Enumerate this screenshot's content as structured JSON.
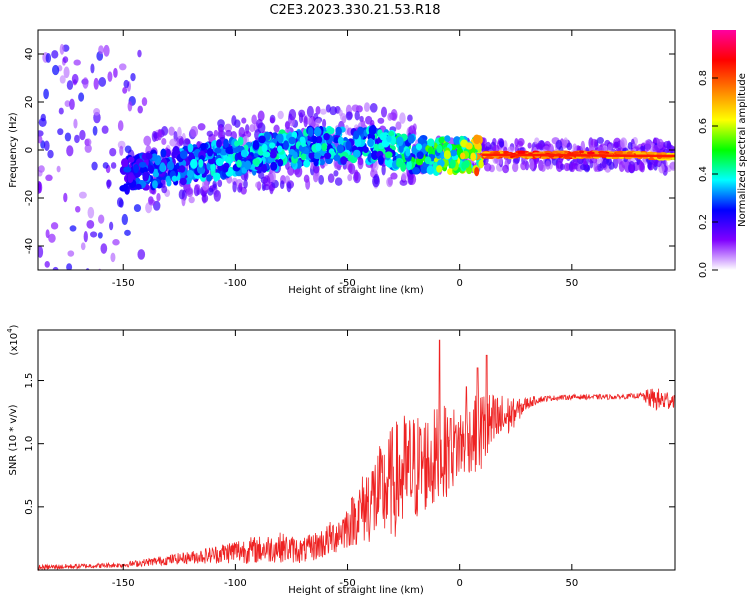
{
  "title": "C2E3.2023.330.21.53.R18",
  "chart_data": [
    {
      "type": "heatmap",
      "title": "C2E3.2023.330.21.53.R18",
      "xlabel": "Height of straight line (km)",
      "ylabel": "Frequency (Hz)",
      "xlim": [
        -188,
        96
      ],
      "ylim": [
        -50,
        50
      ],
      "x_ticks": [
        -150,
        -100,
        -50,
        0,
        50
      ],
      "y_ticks": [
        -40,
        -20,
        0,
        20,
        40
      ],
      "colorbar": {
        "label": "Normalized spectral amplitude",
        "range": [
          0.0,
          1.0
        ],
        "ticks": [
          "0.0",
          "0.2",
          "0.4",
          "0.6",
          "0.8"
        ],
        "tick_values": [
          0.0,
          0.2,
          0.4,
          0.6,
          0.8
        ],
        "colors": [
          "#ffffff",
          "#8000ff",
          "#0000ff",
          "#00ffff",
          "#00ff00",
          "#ffff00",
          "#ff8000",
          "#ff0000",
          "#ff00a0"
        ]
      },
      "ridge": [
        {
          "x": -185,
          "f": -12,
          "a": 0.18
        },
        {
          "x": -160,
          "f": -11,
          "a": 0.22
        },
        {
          "x": -140,
          "f": -9,
          "a": 0.3
        },
        {
          "x": -120,
          "f": -6,
          "a": 0.35
        },
        {
          "x": -100,
          "f": -3,
          "a": 0.38
        },
        {
          "x": -80,
          "f": 0,
          "a": 0.4
        },
        {
          "x": -60,
          "f": 2,
          "a": 0.4
        },
        {
          "x": -40,
          "f": 2,
          "a": 0.38
        },
        {
          "x": -20,
          "f": -2,
          "a": 0.45
        },
        {
          "x": -10,
          "f": -2,
          "a": 0.55
        },
        {
          "x": 0,
          "f": -2,
          "a": 0.6
        },
        {
          "x": 10,
          "f": -2,
          "a": 0.8
        },
        {
          "x": 30,
          "f": -2,
          "a": 0.85
        },
        {
          "x": 60,
          "f": -2,
          "a": 0.85
        },
        {
          "x": 80,
          "f": -2,
          "a": 0.8
        },
        {
          "x": 95,
          "f": -3,
          "a": 0.75
        }
      ]
    },
    {
      "type": "line",
      "xlabel": "Height of straight line (km)",
      "ylabel": "SNR (10 * v/v)",
      "y_multiplier": "(x10",
      "y_multiplier_exp": "4",
      "y_multiplier_close": ")",
      "xlim": [
        -188,
        96
      ],
      "ylim": [
        0,
        1.9
      ],
      "x_ticks": [
        -150,
        -100,
        -50,
        0,
        50
      ],
      "y_ticks": [
        0.5,
        1.0,
        1.5
      ],
      "y_tick_labels": [
        "0.5",
        "1.0",
        "1.5"
      ],
      "color": "#ee2222",
      "series": [
        {
          "x": [
            -188,
            -170,
            -150,
            -140,
            -130,
            -120,
            -110,
            -100,
            -90,
            -80,
            -70,
            -60,
            -55,
            -50,
            -45,
            -40,
            -35,
            -30,
            -25,
            -20,
            -15,
            -10,
            -5,
            0,
            5,
            10,
            15,
            20,
            25,
            30,
            35,
            40,
            50,
            60,
            70,
            80,
            85,
            90,
            96
          ],
          "values": [
            0.02,
            0.03,
            0.04,
            0.06,
            0.08,
            0.1,
            0.12,
            0.15,
            0.16,
            0.18,
            0.15,
            0.22,
            0.28,
            0.35,
            0.45,
            0.55,
            0.6,
            0.7,
            0.75,
            0.8,
            0.85,
            0.88,
            0.95,
            1.0,
            1.05,
            1.1,
            1.15,
            1.2,
            1.25,
            1.32,
            1.35,
            1.36,
            1.37,
            1.37,
            1.37,
            1.38,
            1.36,
            1.34,
            1.35
          ],
          "noise": [
            0.02,
            0.02,
            0.02,
            0.03,
            0.04,
            0.05,
            0.07,
            0.1,
            0.11,
            0.12,
            0.1,
            0.13,
            0.15,
            0.18,
            0.25,
            0.35,
            0.4,
            0.45,
            0.5,
            0.45,
            0.4,
            0.42,
            0.35,
            0.3,
            0.28,
            0.35,
            0.25,
            0.2,
            0.1,
            0.05,
            0.03,
            0.02,
            0.02,
            0.02,
            0.02,
            0.02,
            0.08,
            0.1,
            0.06
          ],
          "peaks": [
            {
              "x": -9,
              "y": 1.82
            },
            {
              "x": -4,
              "y": 1.2
            },
            {
              "x": 8,
              "y": 1.6
            },
            {
              "x": 12,
              "y": 1.7
            },
            {
              "x": 3,
              "y": 1.45
            }
          ]
        }
      ]
    }
  ]
}
